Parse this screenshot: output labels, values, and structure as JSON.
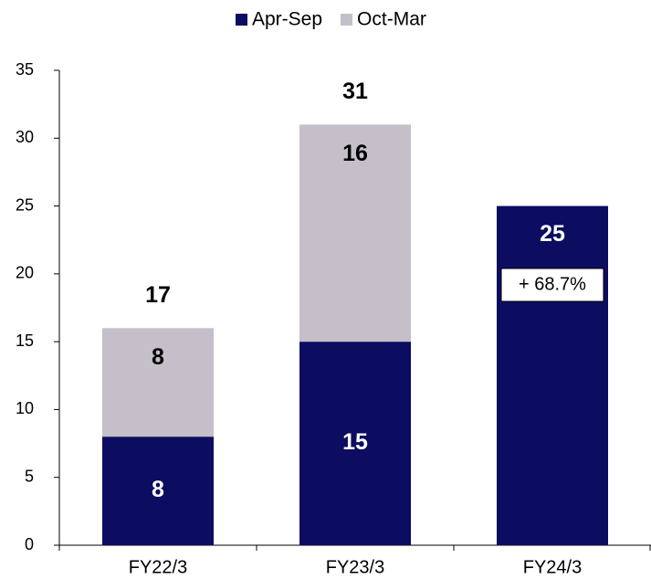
{
  "chart_data": {
    "type": "stacked_bar",
    "categories": [
      "FY22/3",
      "FY23/3",
      "FY24/3"
    ],
    "series": [
      {
        "name": "Apr-Sep",
        "color": "#0c0c60",
        "values": [
          8,
          15,
          25
        ]
      },
      {
        "name": "Oct-Mar",
        "color": "#c4bfc8",
        "values": [
          8,
          16,
          null
        ]
      }
    ],
    "totals": [
      17,
      31,
      null
    ],
    "annotation": "+ 68.7%",
    "ylim": [
      0,
      35
    ],
    "yticks": [
      0,
      5,
      10,
      15,
      20,
      25,
      30,
      35
    ],
    "grid": false,
    "legend": "top"
  }
}
